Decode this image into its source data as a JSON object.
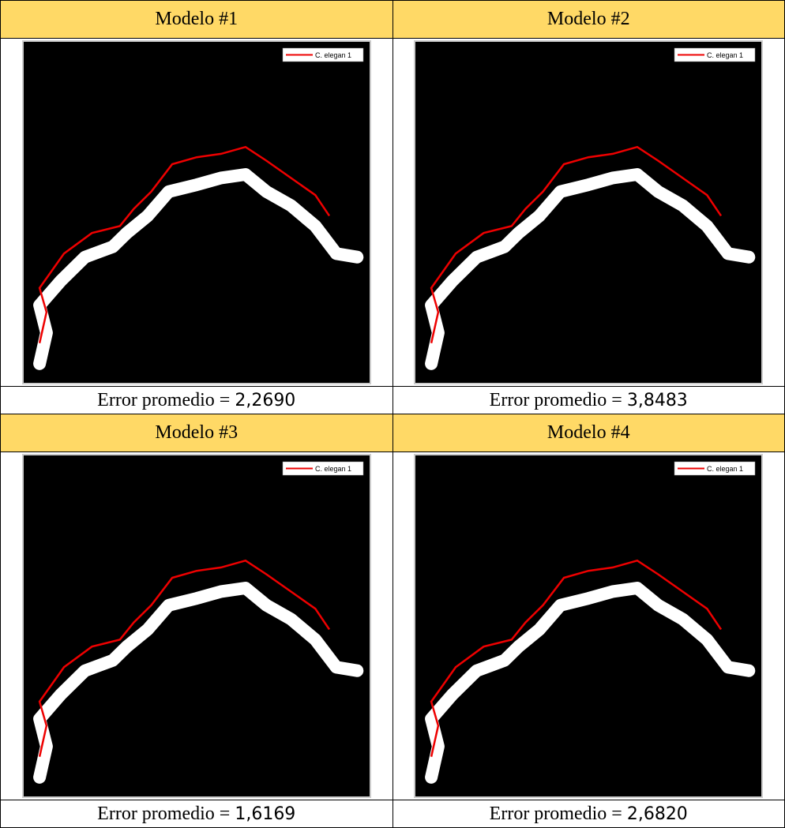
{
  "table": {
    "cells": [
      {
        "header": "Modelo #1",
        "legend": "C. elegan 1",
        "caption": {
          "label": "Error promedio =",
          "value": "2,2690"
        }
      },
      {
        "header": "Modelo #2",
        "legend": "C. elegan 1",
        "caption": {
          "label": "Error promedio =",
          "value": "3,8483"
        }
      },
      {
        "header": "Modelo #3",
        "legend": "C. elegan 1",
        "caption": {
          "label": "Error promedio =",
          "value": "1,6169"
        }
      },
      {
        "header": "Modelo #4",
        "legend": "C. elegan 1",
        "caption": {
          "label": "Error promedio =",
          "value": "2,6820"
        }
      }
    ]
  }
}
